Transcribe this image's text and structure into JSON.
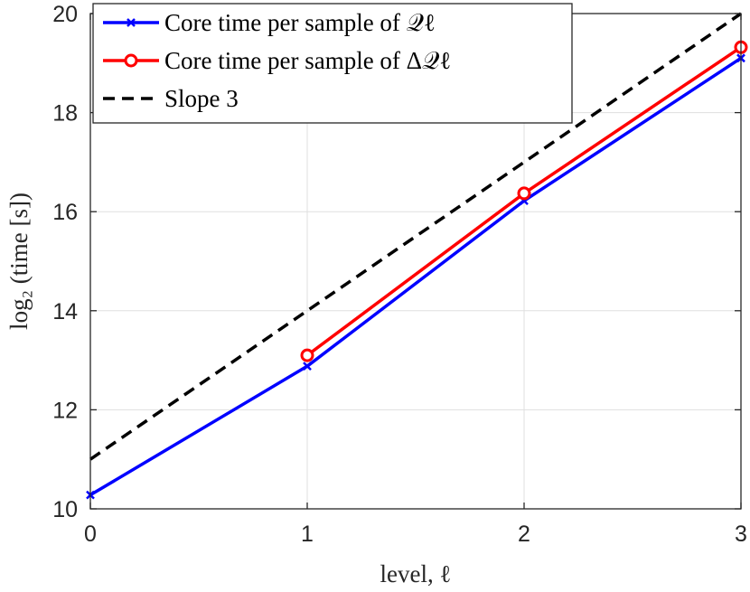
{
  "chart_data": {
    "type": "line",
    "title": "",
    "xlabel": "level, ℓ",
    "ylabel": "log₂ (time [s])",
    "xlim": [
      0,
      3
    ],
    "ylim": [
      10,
      20
    ],
    "xticks": [
      0,
      1,
      2,
      3
    ],
    "yticks": [
      10,
      12,
      14,
      16,
      18,
      20
    ],
    "xtick_labels": [
      "0",
      "1",
      "2",
      "3"
    ],
    "ytick_labels": [
      "10",
      "12",
      "14",
      "16",
      "18",
      "20"
    ],
    "grid": true,
    "legend_position": "top-left",
    "series": [
      {
        "name": "Core time per sample of 𝒬ℓ",
        "color": "#0000ff",
        "marker": "x",
        "style": "solid",
        "x": [
          0,
          1,
          2,
          3
        ],
        "y": [
          10.28,
          12.88,
          16.22,
          19.1
        ]
      },
      {
        "name": "Core time per sample of Δ𝒬ℓ",
        "color": "#ff0000",
        "marker": "o",
        "style": "solid",
        "x": [
          1,
          2,
          3
        ],
        "y": [
          13.1,
          16.37,
          19.32
        ]
      },
      {
        "name": "Slope 3",
        "color": "#000000",
        "marker": "none",
        "style": "dashed",
        "x": [
          0,
          3
        ],
        "y": [
          11,
          20
        ]
      }
    ]
  }
}
